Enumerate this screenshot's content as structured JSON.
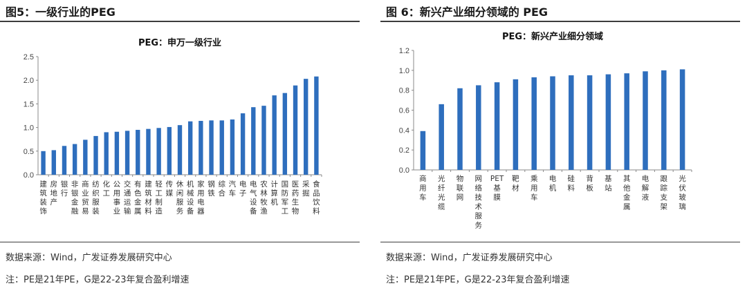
{
  "left": {
    "figure_title": "图5：一级行业的PEG",
    "source": "数据来源：Wind，广发证券发展研究中心",
    "note": "注：PE是21年PE，G是22-23年复合盈利增速"
  },
  "right": {
    "figure_title": "图 6：新兴产业细分领域的 PEG",
    "source": "数据来源：Wind，广发证券发展研究中心",
    "note": "注：PE是21年PE，G是22-23年复合盈利增速"
  },
  "colors": {
    "bar": "#2e6ebd"
  },
  "chart_data": [
    {
      "type": "bar",
      "title": "PEG：申万一级行业",
      "ylim": [
        0,
        2.5
      ],
      "yticks": [
        "0.0",
        "0.5",
        "1.0",
        "1.5",
        "2.0",
        "2.5"
      ],
      "categories": [
        "建筑装饰",
        "房地产",
        "银行",
        "非银金融",
        "商业贸易",
        "纺织服装",
        "化工",
        "公用事业",
        "交通运输",
        "有色金属",
        "建筑材料",
        "轻工制造",
        "传媒",
        "休闲服务",
        "机械设备",
        "家用电器",
        "钢铁",
        "综合",
        "汽车",
        "电子",
        "电气设备",
        "农林牧渔",
        "计算机",
        "国防军工",
        "医药生物",
        "采掘",
        "食品饮料"
      ],
      "values": [
        0.5,
        0.52,
        0.61,
        0.65,
        0.74,
        0.82,
        0.9,
        0.91,
        0.93,
        0.95,
        0.97,
        0.99,
        1.01,
        1.05,
        1.13,
        1.14,
        1.15,
        1.15,
        1.17,
        1.3,
        1.43,
        1.46,
        1.68,
        1.73,
        1.89,
        2.03,
        2.08
      ]
    },
    {
      "type": "bar",
      "title": "PEG：新兴产业细分领域",
      "ylim": [
        0,
        1.2
      ],
      "yticks": [
        "0.0",
        "0.2",
        "0.4",
        "0.6",
        "0.8",
        "1.0",
        "1.2"
      ],
      "categories": [
        "商用车",
        "光纤光缆",
        "物联网",
        "网络技术服务",
        "PET基膜",
        "靶材",
        "乘用车",
        "电机",
        "硅料",
        "背板",
        "基站",
        "其他金属",
        "电解液",
        "跟踪支架",
        "光伏玻璃"
      ],
      "values": [
        0.39,
        0.66,
        0.82,
        0.85,
        0.88,
        0.91,
        0.93,
        0.94,
        0.95,
        0.95,
        0.96,
        0.97,
        0.99,
        1.0,
        1.01
      ]
    }
  ]
}
